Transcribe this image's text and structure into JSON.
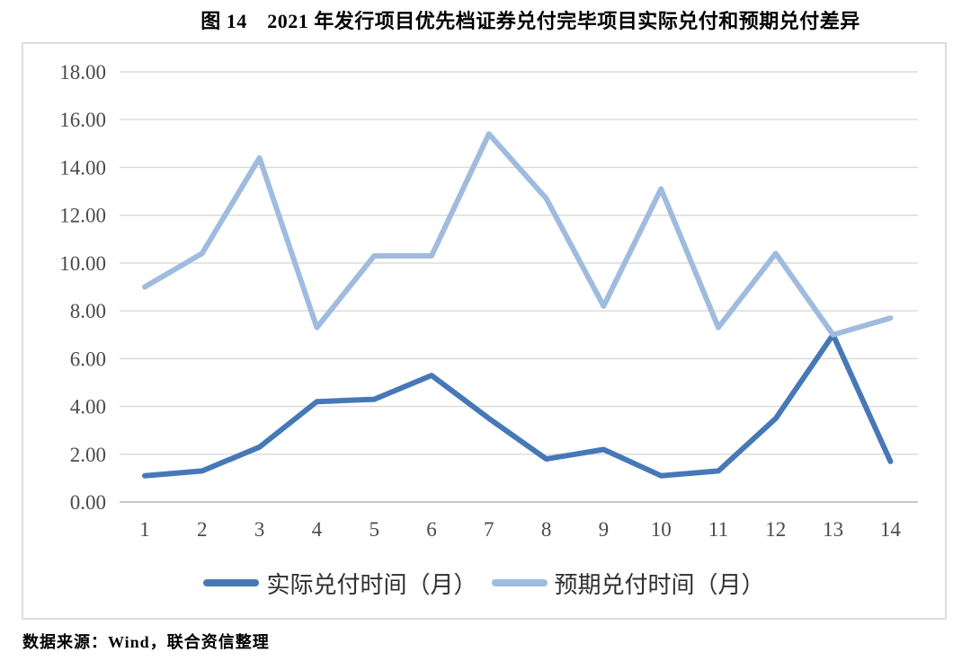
{
  "title": "图 14　2021 年发行项目优先档证券兑付完毕项目实际兑付和预期兑付差异",
  "source": "数据来源：Wind，联合资信整理",
  "chart_data": {
    "type": "line",
    "categories": [
      1,
      2,
      3,
      4,
      5,
      6,
      7,
      8,
      9,
      10,
      11,
      12,
      13,
      14
    ],
    "series": [
      {
        "name": "实际兑付时间（月）",
        "color": "#4678b8",
        "values": [
          1.1,
          1.3,
          2.3,
          4.2,
          4.3,
          5.3,
          3.5,
          1.8,
          2.2,
          1.1,
          1.3,
          3.5,
          7.0,
          1.7
        ]
      },
      {
        "name": "预期兑付时间（月）",
        "color": "#9fbcdf",
        "values": [
          9.0,
          10.4,
          14.4,
          7.3,
          10.3,
          10.3,
          15.4,
          12.7,
          8.2,
          13.1,
          7.3,
          10.4,
          7.0,
          7.7
        ]
      }
    ],
    "title": "图 14　2021 年发行项目优先档证券兑付完毕项目实际兑付和预期兑付差异",
    "xlabel": "",
    "ylabel": "",
    "ylim": [
      0,
      18
    ],
    "ytick_step": 2,
    "ytick_labels": [
      "0.00",
      "2.00",
      "4.00",
      "6.00",
      "8.00",
      "10.00",
      "12.00",
      "14.00",
      "16.00",
      "18.00"
    ],
    "grid": "horizontal",
    "legend_position": "bottom",
    "gridline_color": "#d9d9d9",
    "axis_line_color": "#c0c0c0",
    "tick_label_color": "#4a4a4a"
  }
}
